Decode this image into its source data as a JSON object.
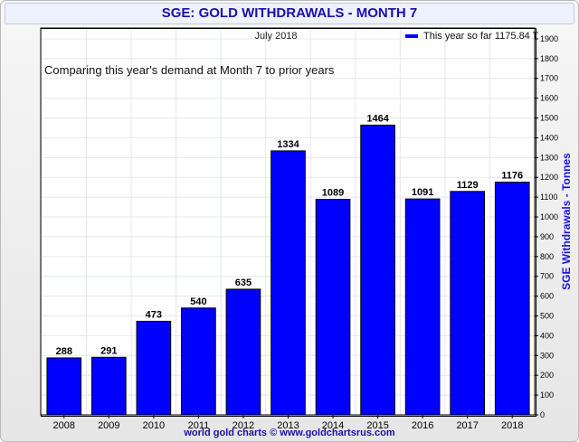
{
  "header": {
    "title": "SGE: GOLD WITHDRAWALS - MONTH 7"
  },
  "chart_data": {
    "type": "bar",
    "title": "SGE: GOLD WITHDRAWALS - MONTH 7",
    "subtitle": "July 2018",
    "annotation": "Comparing this year's demand at Month 7 to prior years",
    "ylabel": "SGE Withdrawals - Tonnes",
    "xlabel": "",
    "categories": [
      "2008",
      "2009",
      "2010",
      "2011",
      "2012",
      "2013",
      "2014",
      "2015",
      "2016",
      "2017",
      "2018"
    ],
    "values": [
      288,
      291,
      473,
      540,
      635,
      1334,
      1089,
      1464,
      1091,
      1129,
      1176
    ],
    "data_labels": [
      "288",
      "291",
      "473",
      "540",
      "635",
      "1334",
      "1089",
      "1464",
      "1091",
      "1129",
      "1176"
    ],
    "ylim": [
      0,
      1950
    ],
    "yticks": [
      0,
      100,
      200,
      300,
      400,
      500,
      600,
      700,
      800,
      900,
      1000,
      1100,
      1200,
      1300,
      1400,
      1500,
      1600,
      1700,
      1800,
      1900
    ],
    "y_axis_side": "right",
    "grid": true,
    "legend": {
      "label": "This year so far 1175.84 T",
      "position": "top-right"
    },
    "bar_color": "#0000ff"
  },
  "footer": {
    "credit": "world gold charts © www.goldchartsrus.com"
  }
}
